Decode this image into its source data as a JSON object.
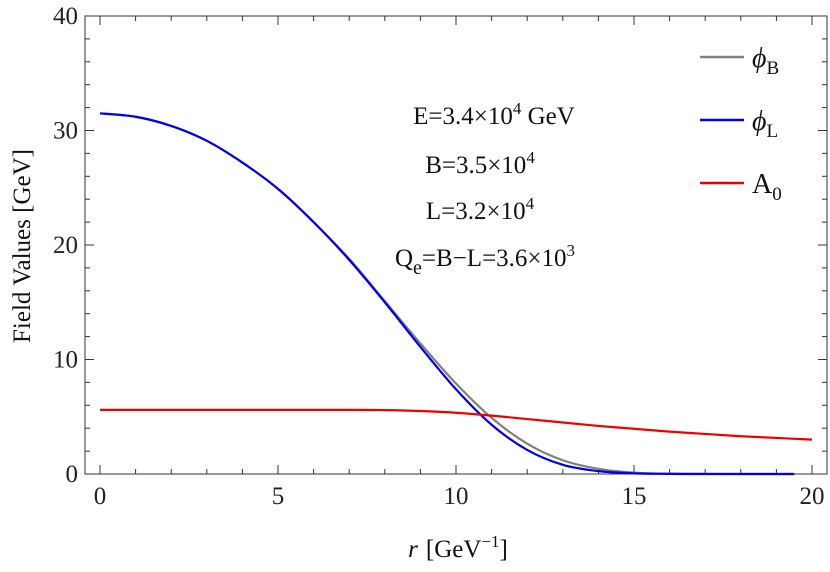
{
  "chart_data": {
    "type": "line",
    "xlabel": {
      "var": "r",
      "unit": "[GeV",
      "unit_exp": "−1",
      "close": "]"
    },
    "ylabel": "Field Values [GeV]",
    "xlim": [
      0,
      20
    ],
    "ylim": [
      0,
      40
    ],
    "xticks": [
      0,
      5,
      10,
      15,
      20
    ],
    "yticks": [
      0,
      10,
      20,
      30,
      40
    ],
    "grid": false,
    "legend_position": "top-right",
    "annotations": {
      "energy": {
        "base": "E=3.4×10",
        "exp": "4",
        "unit": " GeV"
      },
      "baryon": {
        "base": "B=3.5×10",
        "exp": "4"
      },
      "lepton": {
        "base": "L=3.2×10",
        "exp": "4"
      },
      "charge": {
        "q": "Q",
        "q_sub": "e",
        "base": "=B−L=3.6×10",
        "exp": "3"
      }
    },
    "series": [
      {
        "name": "ϕ",
        "name_sub": "B",
        "color": "#808080",
        "x": [
          0,
          1,
          2,
          3,
          4,
          5,
          6,
          7,
          8,
          9,
          10,
          11,
          12,
          13,
          14,
          15,
          16,
          17,
          18,
          19,
          19.5
        ],
        "y": [
          31.5,
          31.2,
          30.4,
          29.1,
          27.2,
          24.9,
          22.0,
          18.8,
          15.1,
          11.4,
          7.9,
          4.9,
          2.65,
          1.2,
          0.45,
          0.12,
          0.03,
          0.01,
          0.0,
          0.0,
          0.0
        ]
      },
      {
        "name": "ϕ",
        "name_sub": "L",
        "color": "#0000ee",
        "x": [
          0,
          1,
          2,
          3,
          4,
          5,
          6,
          7,
          8,
          9,
          10,
          11,
          12,
          13,
          14,
          15,
          16,
          17,
          18,
          19,
          19.5
        ],
        "y": [
          31.5,
          31.2,
          30.4,
          29.1,
          27.2,
          24.9,
          22.0,
          18.7,
          15.0,
          11.1,
          7.4,
          4.3,
          2.1,
          0.8,
          0.25,
          0.06,
          0.01,
          0.0,
          0.0,
          0.0,
          0.0
        ]
      },
      {
        "name": "A",
        "name_sub": "0",
        "color": "#ee0000",
        "x": [
          0,
          2,
          4,
          6,
          7,
          8,
          9,
          10,
          11,
          12,
          13,
          14,
          15,
          16,
          17,
          18,
          19,
          20
        ],
        "y": [
          5.6,
          5.6,
          5.6,
          5.6,
          5.6,
          5.58,
          5.5,
          5.35,
          5.1,
          4.8,
          4.5,
          4.2,
          3.95,
          3.7,
          3.5,
          3.3,
          3.15,
          3.0
        ]
      }
    ]
  }
}
